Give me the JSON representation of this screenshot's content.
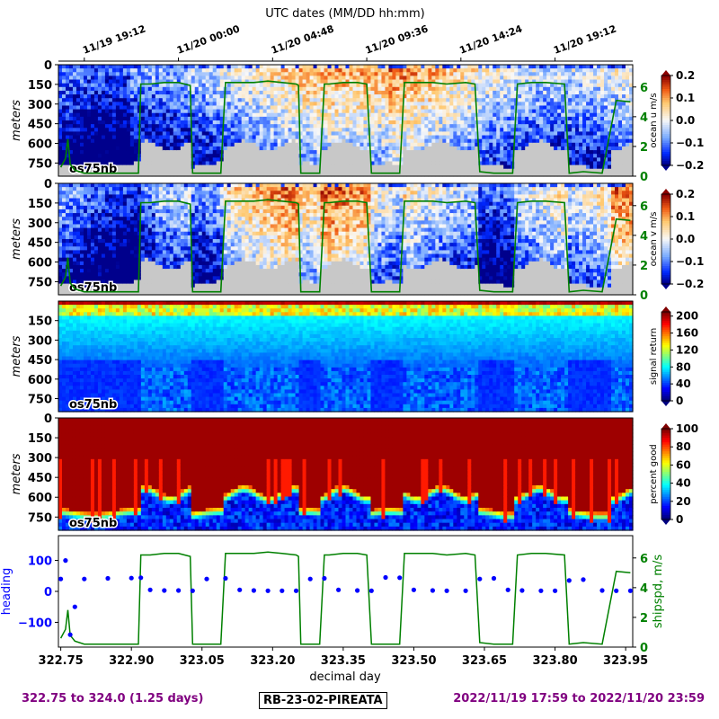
{
  "figure": {
    "top_axis_label": "UTC dates (MM/DD hh:mm)",
    "top_ticks": [
      "11/19 19:12",
      "11/20 00:00",
      "11/20 04:48",
      "11/20 09:36",
      "11/20 14:24",
      "11/20 19:12"
    ],
    "bottom_axis_label": "decimal day",
    "footer_left": "322.75 to 324.0 (1.25 days)",
    "footer_center": "RB-23-02-PIREATA",
    "footer_right": "2022/11/19 17:59 to 2022/11/20 23:59",
    "instrument_label": "os75nb",
    "colors": {
      "ship_speed": "#008000",
      "heading": "#0000ff",
      "bad_data": "#c8c8c8",
      "footer": "#800080"
    }
  },
  "chart_data": [
    {
      "type": "heatmap",
      "panel": "ocean_u",
      "ylabel": "meters",
      "yticks": [
        "0",
        "150",
        "300",
        "450",
        "600",
        "750"
      ],
      "ylim": [
        850,
        0
      ],
      "colorbar_label": "ocean u m/s",
      "colorbar_ticks": [
        "0.2",
        "0.1",
        "0.0",
        "−0.1",
        "−0.2"
      ],
      "colorbar_range": [
        -0.2,
        0.2
      ],
      "colormap": "bwr",
      "overlay_axis_ticks": [
        "6",
        "4",
        "2",
        "0"
      ],
      "overlay_range": [
        0,
        7.5
      ]
    },
    {
      "type": "heatmap",
      "panel": "ocean_v",
      "ylabel": "meters",
      "yticks": [
        "0",
        "150",
        "300",
        "450",
        "600",
        "750"
      ],
      "ylim": [
        850,
        0
      ],
      "colorbar_label": "ocean v m/s",
      "colorbar_ticks": [
        "0.2",
        "0.1",
        "0.0",
        "−0.1",
        "−0.2"
      ],
      "colorbar_range": [
        -0.2,
        0.2
      ],
      "colormap": "bwr",
      "overlay_axis_ticks": [
        "6",
        "4",
        "2",
        "0"
      ],
      "overlay_range": [
        0,
        7.5
      ]
    },
    {
      "type": "heatmap",
      "panel": "signal_return",
      "ylabel": "meters",
      "yticks": [
        "150",
        "300",
        "450",
        "600",
        "750"
      ],
      "ylim": [
        850,
        0
      ],
      "colorbar_label": "signal return",
      "colorbar_ticks": [
        "200",
        "160",
        "120",
        "80",
        "40",
        "0"
      ],
      "colorbar_range": [
        0,
        210
      ],
      "colormap": "jet"
    },
    {
      "type": "heatmap",
      "panel": "percent_good",
      "ylabel": "meters",
      "yticks": [
        "0",
        "150",
        "300",
        "450",
        "600",
        "750"
      ],
      "ylim": [
        850,
        0
      ],
      "colorbar_label": "percent good",
      "colorbar_ticks": [
        "100",
        "80",
        "60",
        "40",
        "20",
        "0"
      ],
      "colorbar_range": [
        0,
        100
      ],
      "colormap": "jet"
    },
    {
      "type": "line",
      "panel": "heading_shipspd",
      "x": [
        322.75,
        322.76,
        322.77,
        322.78,
        322.8,
        322.85,
        322.9,
        322.92,
        322.94,
        322.97,
        323.0,
        323.03,
        323.06,
        323.1,
        323.13,
        323.16,
        323.19,
        323.22,
        323.25,
        323.28,
        323.31,
        323.34,
        323.38,
        323.41,
        323.44,
        323.47,
        323.5,
        323.54,
        323.57,
        323.61,
        323.64,
        323.67,
        323.7,
        323.73,
        323.77,
        323.8,
        323.83,
        323.86,
        323.9,
        323.93,
        323.96
      ],
      "series": [
        {
          "name": "heading",
          "axis": "left",
          "values": [
            40,
            100,
            -140,
            -50,
            40,
            42,
            43,
            44,
            5,
            3,
            3,
            2,
            40,
            42,
            5,
            3,
            2,
            2,
            2,
            40,
            42,
            5,
            3,
            2,
            45,
            44,
            5,
            3,
            2,
            2,
            40,
            42,
            5,
            3,
            2,
            2,
            35,
            38,
            3,
            2,
            2
          ]
        },
        {
          "name": "shipspd, m/s",
          "axis": "right",
          "values": [
            0.5,
            1.0,
            0.3,
            0.2,
            0.2,
            0.2,
            0.2,
            0.3,
            6.2,
            6.3,
            6.3,
            6.1,
            0.2,
            0.2,
            6.3,
            6.3,
            6.4,
            6.3,
            6.2,
            0.2,
            0.2,
            6.3,
            6.3,
            6.3,
            0.2,
            0.2,
            6.3,
            6.3,
            6.2,
            6.3,
            0.3,
            0.2,
            6.2,
            6.3,
            6.3,
            6.2,
            0.2,
            0.3,
            5.2,
            5.0,
            5.1
          ]
        }
      ],
      "xlabel": "decimal day",
      "xticks": [
        "322.75",
        "322.90",
        "323.05",
        "323.20",
        "323.35",
        "323.50",
        "323.65",
        "323.80",
        "323.95"
      ],
      "xlim": [
        322.745,
        323.965
      ],
      "ylabel": "heading",
      "ylabel_right": "shipspd, m/s",
      "yticks_left": [
        "100",
        "0",
        "−100"
      ],
      "ylim_left": [
        -180,
        180
      ],
      "yticks_right": [
        "6",
        "4",
        "2",
        "0"
      ],
      "ylim_right": [
        0,
        7.5
      ]
    }
  ],
  "ship_speed_track": {
    "x": [
      322.75,
      322.76,
      322.765,
      322.77,
      322.78,
      322.8,
      322.85,
      322.9,
      322.915,
      322.92,
      322.94,
      322.97,
      323.0,
      323.025,
      323.03,
      323.06,
      323.09,
      323.1,
      323.13,
      323.16,
      323.19,
      323.22,
      323.25,
      323.255,
      323.26,
      323.3,
      323.31,
      323.32,
      323.35,
      323.38,
      323.4,
      323.41,
      323.44,
      323.47,
      323.48,
      323.5,
      323.54,
      323.57,
      323.61,
      323.63,
      323.64,
      323.67,
      323.71,
      323.72,
      323.75,
      323.78,
      323.82,
      323.83,
      323.86,
      323.9,
      323.93,
      323.96
    ],
    "values": [
      0.6,
      1.2,
      2.5,
      0.8,
      0.4,
      0.2,
      0.2,
      0.2,
      0.2,
      6.2,
      6.2,
      6.3,
      6.3,
      6.1,
      0.2,
      0.2,
      0.2,
      6.3,
      6.3,
      6.3,
      6.4,
      6.3,
      6.2,
      6.1,
      0.2,
      0.2,
      6.2,
      6.2,
      6.3,
      6.3,
      6.2,
      0.2,
      0.2,
      0.2,
      6.3,
      6.3,
      6.3,
      6.2,
      6.3,
      6.2,
      0.3,
      0.2,
      0.2,
      6.2,
      6.3,
      6.3,
      6.2,
      0.2,
      0.3,
      0.2,
      5.1,
      5.0
    ]
  }
}
